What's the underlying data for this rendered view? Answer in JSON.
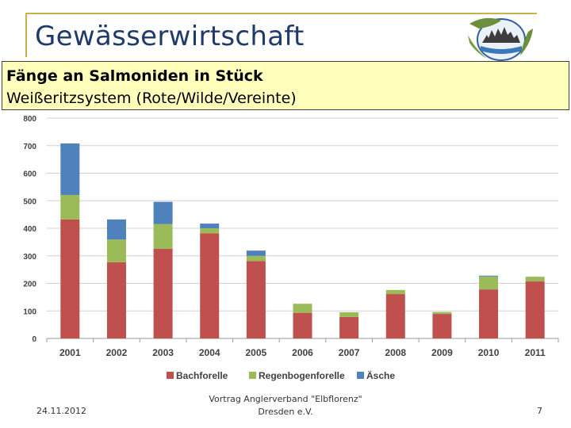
{
  "slide": {
    "title": "Gewässerwirtschaft",
    "subtitle_bold": "Fänge an Salmoniden in Stück",
    "subtitle": "Weißeritzsystem (Rote/Wilde/Vereinte)"
  },
  "footer": {
    "date": "24.11.2012",
    "center_line1": "Vortrag Anglerverband \"Elbflorenz\"",
    "center_line2": "Dresden e.V.",
    "page": "7"
  },
  "logo": {
    "icon": "fish-club-logo-icon"
  },
  "chart_data": {
    "type": "bar",
    "stacked": true,
    "categories": [
      "2001",
      "2002",
      "2003",
      "2004",
      "2005",
      "2006",
      "2007",
      "2008",
      "2009",
      "2010",
      "2011"
    ],
    "series": [
      {
        "name": "Bachforelle",
        "color": "#c0504d",
        "values": [
          432,
          277,
          326,
          382,
          281,
          93,
          78,
          161,
          89,
          178,
          207
        ]
      },
      {
        "name": "Regenbogenforelle",
        "color": "#9bbb59",
        "values": [
          89,
          82,
          89,
          18,
          19,
          33,
          17,
          15,
          7,
          47,
          17
        ]
      },
      {
        "name": "Äsche",
        "color": "#4f81bd",
        "values": [
          187,
          73,
          81,
          17,
          19,
          0,
          0,
          0,
          0,
          3,
          0
        ]
      }
    ],
    "yticks": [
      "0",
      "100",
      "200",
      "300",
      "400",
      "500",
      "600",
      "700",
      "800"
    ],
    "ylim": [
      0,
      800
    ],
    "grid": true,
    "legend_position": "bottom"
  }
}
